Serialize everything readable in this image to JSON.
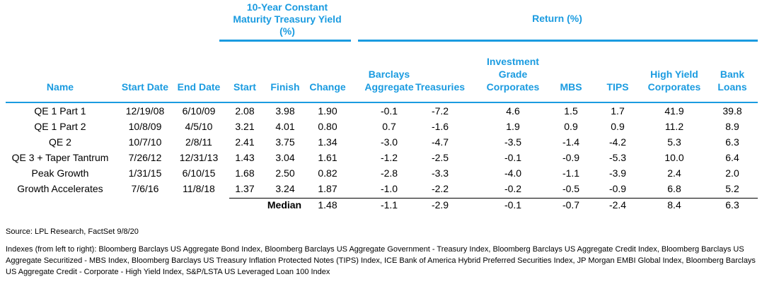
{
  "header": {
    "yield_group": [
      "10-Year Constant",
      "Maturity Treasury Yield",
      "(%)"
    ],
    "return_group": "Return (%)",
    "columns": [
      [
        "Name"
      ],
      [
        "Start Date"
      ],
      [
        "End Date"
      ],
      [
        "Start"
      ],
      [
        "Finish"
      ],
      [
        "Change"
      ],
      [
        "Barclays",
        "Aggregate"
      ],
      [
        "Treasuries"
      ],
      [
        "Investment",
        "Grade",
        "Corporates"
      ],
      [
        "MBS"
      ],
      [
        "TIPS"
      ],
      [
        "High Yield",
        "Corporates"
      ],
      [
        "Bank",
        "Loans"
      ]
    ]
  },
  "rows": [
    [
      "QE 1 Part 1",
      "12/19/08",
      "6/10/09",
      "2.08",
      "3.98",
      "1.90",
      "-0.1",
      "-7.2",
      "4.6",
      "1.5",
      "1.7",
      "41.9",
      "39.8"
    ],
    [
      "QE 1 Part 2",
      "10/8/09",
      "4/5/10",
      "3.21",
      "4.01",
      "0.80",
      "0.7",
      "-1.6",
      "1.9",
      "0.9",
      "0.9",
      "11.2",
      "8.9"
    ],
    [
      "QE 2",
      "10/7/10",
      "2/8/11",
      "2.41",
      "3.75",
      "1.34",
      "-3.0",
      "-4.7",
      "-3.5",
      "-1.4",
      "-4.2",
      "5.3",
      "6.3"
    ],
    [
      "QE 3 + Taper Tantrum",
      "7/26/12",
      "12/31/13",
      "1.43",
      "3.04",
      "1.61",
      "-1.2",
      "-2.5",
      "-0.1",
      "-0.9",
      "-5.3",
      "10.0",
      "6.4"
    ],
    [
      "Peak Growth",
      "1/31/15",
      "6/10/15",
      "1.68",
      "2.50",
      "0.82",
      "-2.8",
      "-3.3",
      "-4.0",
      "-1.1",
      "-3.9",
      "2.4",
      "2.0"
    ],
    [
      "Growth Accelerates",
      "7/6/16",
      "11/8/18",
      "1.37",
      "3.24",
      "1.87",
      "-1.0",
      "-2.2",
      "-0.2",
      "-0.5",
      "-0.9",
      "6.8",
      "5.2"
    ]
  ],
  "median": {
    "label": "Median",
    "values": [
      "1.48",
      "-1.1",
      "-2.9",
      "-0.1",
      "-0.7",
      "-2.4",
      "8.4",
      "6.3"
    ]
  },
  "source": "Source: LPL Research, FactSet 9/8/20",
  "indexes_note": "Indexes (from left to right): Bloomberg Barclays US Aggregate Bond Index, Bloomberg Barclays US Aggregate Government - Treasury Index, Bloomberg Barclays US Aggregate Credit Index, Bloomberg Barclays US Aggregate Securitized - MBS Index, Bloomberg Barclays US Treasury Inflation Protected Notes (TIPS) Index, ICE Bank of America Hybrid Preferred Securities Index, JP Morgan EMBI Global Index, Bloomberg Barclays US Aggregate Credit - Corporate - High Yield Index, S&P/LSTA US Leveraged Loan 100 Index",
  "colors": {
    "accent": "#1a9be0",
    "text": "#000000"
  }
}
